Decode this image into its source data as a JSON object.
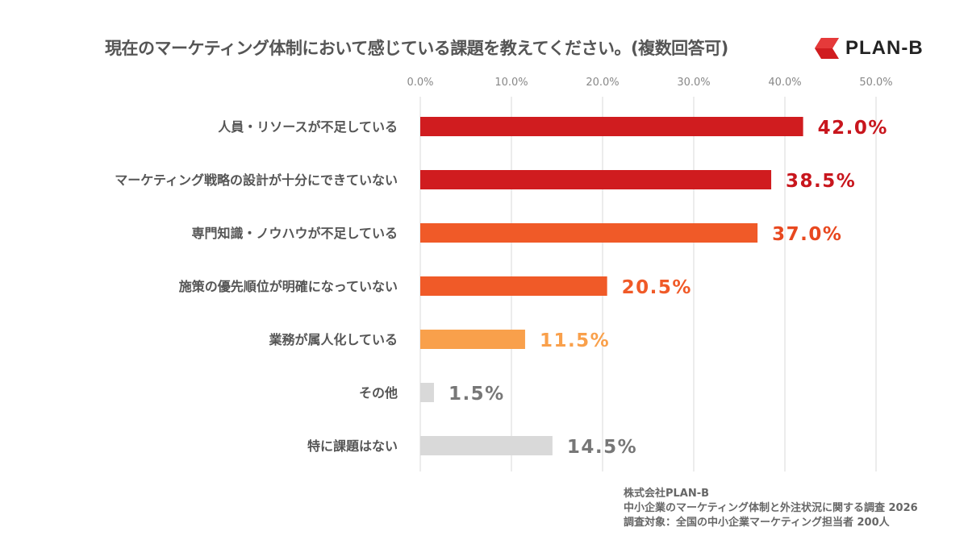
{
  "chart_data": {
    "type": "bar",
    "orientation": "horizontal",
    "title": "現在のマーケティング体制において感じている課題を教えてください。(複数回答可)",
    "categories": [
      "人員・リソースが不足している",
      "マーケティング戦略の設計が十分にできていない",
      "専門知識・ノウハウが不足している",
      "施策の優先順位が明確になっていない",
      "業務が属人化している",
      "その他",
      "特に課題はない"
    ],
    "values": [
      42.0,
      38.5,
      37.0,
      20.5,
      11.5,
      1.5,
      14.5
    ],
    "value_labels": [
      "42.0%",
      "38.5%",
      "37.0%",
      "20.5%",
      "11.5%",
      "1.5%",
      "14.5%"
    ],
    "bar_colors": [
      "#d01c1f",
      "#d01c1f",
      "#f05a28",
      "#f05a28",
      "#f9a04b",
      "#d9d9d9",
      "#d9d9d9"
    ],
    "label_colors": [
      "#c8161d",
      "#c8161d",
      "#e8481f",
      "#f05a28",
      "#f9a04b",
      "#777777",
      "#777777"
    ],
    "xlim": [
      0,
      50
    ],
    "ticks": [
      0,
      10,
      20,
      30,
      40,
      50
    ],
    "tick_labels": [
      "0.0%",
      "10.0%",
      "20.0%",
      "30.0%",
      "40.0%",
      "50.0%"
    ],
    "grid": true,
    "xlabel": "",
    "ylabel": ""
  },
  "logo": {
    "text": "PLAN-B",
    "color": "#d01c1f"
  },
  "source": {
    "line1": "株式会社PLAN-B",
    "line2": "中小企業のマーケティング体制と外注状況に関する調査 2026",
    "line3": "調査対象：全国の中小企業マーケティング担当者 200人"
  }
}
